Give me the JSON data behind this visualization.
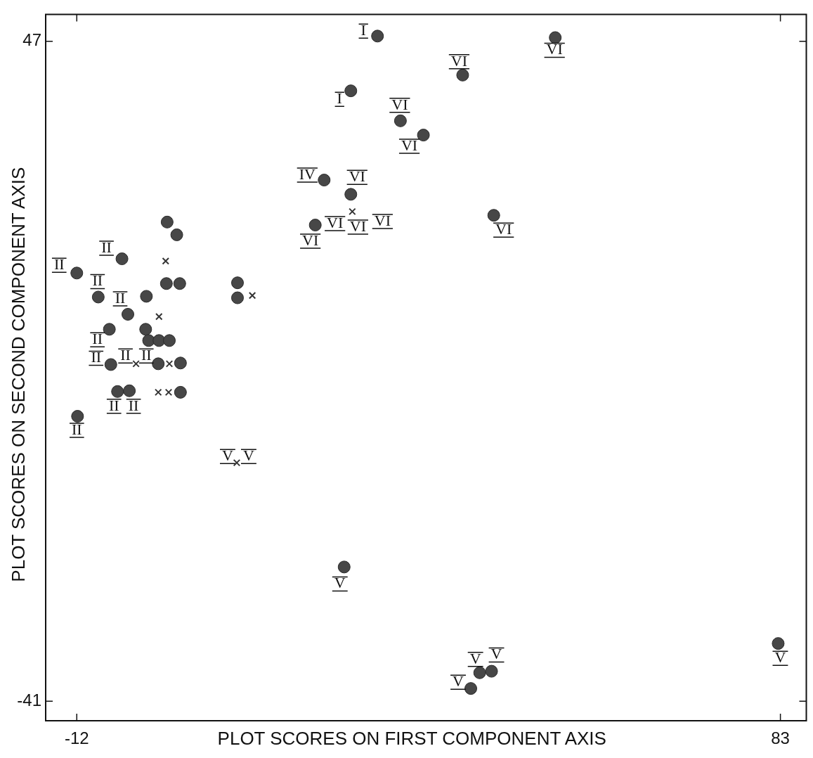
{
  "chart_data": {
    "type": "scatter",
    "xlabel": "PLOT SCORES ON FIRST COMPONENT AXIS",
    "ylabel": "PLOT SCORES ON SECOND COMPONENT AXIS",
    "xlim": [
      -16.2,
      86.5
    ],
    "ylim": [
      -43.6,
      50.6
    ],
    "xticks": [
      -12,
      83
    ],
    "yticks": [
      47,
      -41
    ],
    "grid": false,
    "legend": false,
    "series": [
      {
        "color": "#474747",
        "marker": "circle",
        "x": [
          0.2,
          1.5,
          -5.9,
          -12.0,
          0.1,
          1.9,
          9.7,
          9.7,
          -9.1,
          -2.6,
          -5.1,
          -7.6,
          -2.7,
          -2.3,
          -0.9,
          0.5,
          -7.4,
          -1.0,
          2.0,
          -6.5,
          -4.9,
          2.0,
          -11.9,
          28.6,
          52.6,
          40.1,
          25.0,
          31.7,
          34.8,
          21.4,
          25.0,
          20.2,
          44.3,
          24.1,
          82.7,
          41.2,
          42.4,
          44.0
        ],
        "values": [
          22.9,
          21.2,
          18.0,
          16.1,
          14.7,
          14.7,
          14.8,
          12.8,
          12.9,
          13.0,
          10.6,
          8.6,
          8.6,
          7.1,
          7.1,
          7.1,
          3.9,
          4.0,
          4.1,
          0.3,
          0.4,
          0.2,
          -3.0,
          47.7,
          47.5,
          42.5,
          40.4,
          36.4,
          34.5,
          28.5,
          26.6,
          22.5,
          23.8,
          -23.1,
          -33.3,
          -39.3,
          -37.2,
          -37.0
        ]
      },
      {
        "color": "#333333",
        "marker": "cross",
        "x": [
          0.0,
          -0.9,
          -4.0,
          0.5,
          -1.0,
          0.4,
          11.7,
          9.6,
          25.2
        ],
        "values": [
          17.7,
          10.3,
          4.0,
          4.0,
          0.2,
          0.2,
          13.1,
          -9.2,
          24.3
        ]
      }
    ],
    "annotations": [
      {
        "text": "II",
        "x": -12.0,
        "y": 16.1
      },
      {
        "text": "II",
        "x": -5.9,
        "y": 18.0
      },
      {
        "text": "II",
        "x": -9.1,
        "y": 12.9
      },
      {
        "text": "II",
        "x": -5.1,
        "y": 10.6
      },
      {
        "text": "II",
        "x": -7.6,
        "y": 8.6
      },
      {
        "text": "II",
        "x": -7.4,
        "y": 3.9
      },
      {
        "text": "II",
        "x": -4.0,
        "y": 4.0
      },
      {
        "text": "II",
        "x": -1.0,
        "y": 4.0
      },
      {
        "text": "II",
        "x": -6.5,
        "y": 0.3
      },
      {
        "text": "II",
        "x": -4.9,
        "y": 0.4
      },
      {
        "text": "II",
        "x": -11.9,
        "y": -3.0
      },
      {
        "text": "V",
        "x": 9.6,
        "y": -9.2
      },
      {
        "text": "V",
        "x": 9.6,
        "y": -9.2
      },
      {
        "text": "IV",
        "x": 21.4,
        "y": 28.5
      },
      {
        "text": "VI",
        "x": 25.0,
        "y": 26.6
      },
      {
        "text": "VI",
        "x": 20.2,
        "y": 22.5
      },
      {
        "text": "VI",
        "x": 25.2,
        "y": 24.3
      },
      {
        "text": "VI",
        "x": 25.2,
        "y": 24.3
      },
      {
        "text": "VI",
        "x": 20.2,
        "y": 22.5
      },
      {
        "text": "I",
        "x": 28.6,
        "y": 47.7
      },
      {
        "text": "I",
        "x": 25.0,
        "y": 40.4
      },
      {
        "text": "VI",
        "x": 31.7,
        "y": 36.4
      },
      {
        "text": "VI",
        "x": 34.8,
        "y": 34.5
      },
      {
        "text": "VI",
        "x": 40.1,
        "y": 42.5
      },
      {
        "text": "VI",
        "x": 52.6,
        "y": 47.5
      },
      {
        "text": "VI",
        "x": 44.3,
        "y": 23.8
      },
      {
        "text": "V",
        "x": 24.1,
        "y": -23.1
      },
      {
        "text": "V",
        "x": 42.4,
        "y": -37.2
      },
      {
        "text": "V",
        "x": 44.0,
        "y": -37.0
      },
      {
        "text": "V",
        "x": 41.2,
        "y": -39.3
      },
      {
        "text": "V",
        "x": 82.7,
        "y": -33.3
      }
    ]
  }
}
